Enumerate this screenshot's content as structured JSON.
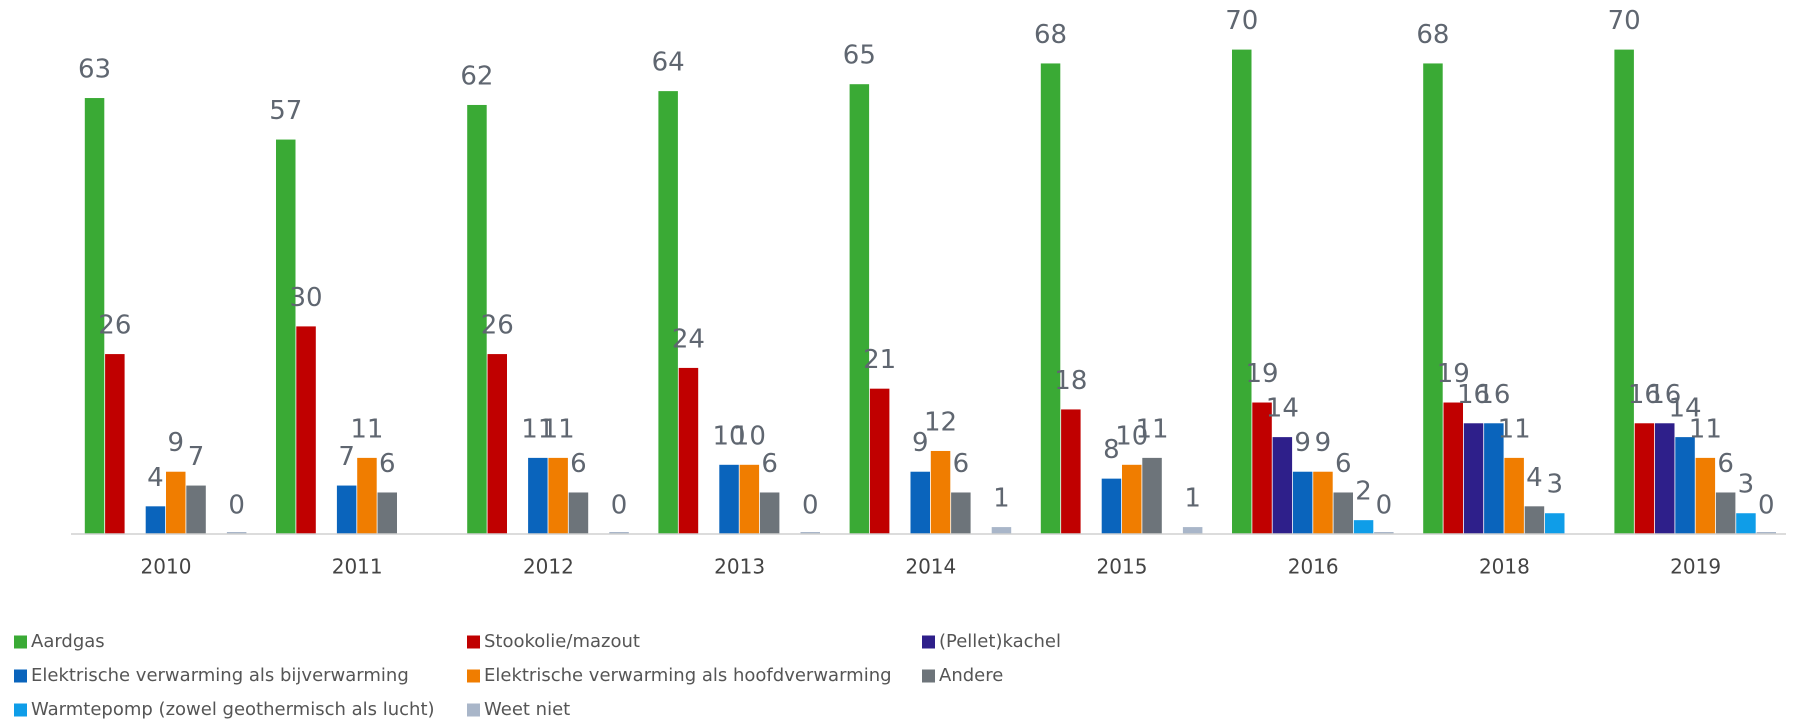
{
  "chart_data": {
    "type": "bar",
    "categories": [
      "2010",
      "2011",
      "2012",
      "2013",
      "2014",
      "2015",
      "2016",
      "2018",
      "2019"
    ],
    "series": [
      {
        "name": "Aardgas",
        "color": "#3aaa35",
        "values": [
          63,
          57,
          62,
          64,
          65,
          68,
          70,
          68,
          70
        ]
      },
      {
        "name": "Stookolie/mazout",
        "color": "#c00000",
        "values": [
          26,
          30,
          26,
          24,
          21,
          18,
          19,
          19,
          16
        ]
      },
      {
        "name": "(Pellet)kachel",
        "color": "#2e1f8a",
        "values": [
          null,
          null,
          null,
          null,
          null,
          null,
          14,
          16,
          16
        ]
      },
      {
        "name": "Elektrische verwarming als bijverwarming",
        "color": "#0a64bc",
        "values": [
          4,
          7,
          11,
          10,
          9,
          8,
          9,
          16,
          14
        ]
      },
      {
        "name": "Elektrische verwarming als hoofdverwarming",
        "color": "#f07d00",
        "values": [
          9,
          11,
          11,
          10,
          12,
          10,
          9,
          11,
          11
        ]
      },
      {
        "name": "Andere",
        "color": "#6d747a",
        "values": [
          7,
          6,
          6,
          6,
          6,
          11,
          6,
          4,
          6
        ]
      },
      {
        "name": "Warmtepomp (zowel geothermisch als lucht)",
        "color": "#0f9de8",
        "values": [
          null,
          null,
          null,
          null,
          null,
          null,
          2,
          3,
          3
        ]
      },
      {
        "name": "Weet niet",
        "color": "#a9b6c9",
        "values": [
          0,
          null,
          0,
          0,
          1,
          1,
          0,
          null,
          0
        ]
      }
    ],
    "ylim": [
      0,
      75
    ]
  }
}
